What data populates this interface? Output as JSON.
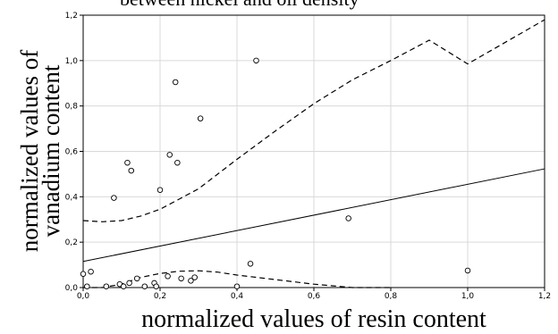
{
  "chart_data": {
    "type": "scatter",
    "title": "between nickel and oil density",
    "xlabel": "normalized values of resin content",
    "ylabel_line1": "normalized values of",
    "ylabel_line2": "vanadium content",
    "xlim": [
      0,
      1.2
    ],
    "ylim": [
      0,
      1.2
    ],
    "x_ticks": [
      "0,0",
      "0,2",
      "0,4",
      "0,6",
      "0,8",
      "1,0",
      "1,2"
    ],
    "y_ticks": [
      "0,0",
      "0,2",
      "0,4",
      "0,6",
      "0,8",
      "1,0",
      "1,2"
    ],
    "grid": true,
    "points": [
      {
        "x": 0.0,
        "y": 0.06
      },
      {
        "x": 0.02,
        "y": 0.07
      },
      {
        "x": 0.01,
        "y": 0.005
      },
      {
        "x": 0.06,
        "y": 0.005
      },
      {
        "x": 0.08,
        "y": 0.395
      },
      {
        "x": 0.095,
        "y": 0.015
      },
      {
        "x": 0.105,
        "y": 0.005
      },
      {
        "x": 0.12,
        "y": 0.02
      },
      {
        "x": 0.115,
        "y": 0.55
      },
      {
        "x": 0.125,
        "y": 0.515
      },
      {
        "x": 0.14,
        "y": 0.04
      },
      {
        "x": 0.16,
        "y": 0.005
      },
      {
        "x": 0.185,
        "y": 0.02
      },
      {
        "x": 0.19,
        "y": 0.005
      },
      {
        "x": 0.2,
        "y": 0.43
      },
      {
        "x": 0.22,
        "y": 0.05
      },
      {
        "x": 0.225,
        "y": 0.585
      },
      {
        "x": 0.24,
        "y": 0.905
      },
      {
        "x": 0.245,
        "y": 0.55
      },
      {
        "x": 0.255,
        "y": 0.04
      },
      {
        "x": 0.28,
        "y": 0.03
      },
      {
        "x": 0.29,
        "y": 0.045
      },
      {
        "x": 0.305,
        "y": 0.745
      },
      {
        "x": 0.4,
        "y": 0.005
      },
      {
        "x": 0.435,
        "y": 0.105
      },
      {
        "x": 0.45,
        "y": 1.0
      },
      {
        "x": 0.69,
        "y": 0.305
      },
      {
        "x": 1.0,
        "y": 0.075
      }
    ],
    "fit_line": {
      "intercept": 0.115,
      "slope": 0.34
    },
    "upper_band": [
      {
        "x": 0.0,
        "y": 0.295
      },
      {
        "x": 0.05,
        "y": 0.29
      },
      {
        "x": 0.1,
        "y": 0.295
      },
      {
        "x": 0.15,
        "y": 0.315
      },
      {
        "x": 0.2,
        "y": 0.345
      },
      {
        "x": 0.25,
        "y": 0.39
      },
      {
        "x": 0.3,
        "y": 0.435
      },
      {
        "x": 0.35,
        "y": 0.5
      },
      {
        "x": 0.4,
        "y": 0.565
      },
      {
        "x": 0.5,
        "y": 0.69
      },
      {
        "x": 0.6,
        "y": 0.81
      },
      {
        "x": 0.7,
        "y": 0.915
      },
      {
        "x": 0.8,
        "y": 1.0
      },
      {
        "x": 0.9,
        "y": 1.09
      },
      {
        "x": 1.0,
        "y": 0.985
      },
      {
        "x": 1.2,
        "y": 1.18
      }
    ],
    "lower_band": [
      {
        "x": 0.0,
        "y": -0.05
      },
      {
        "x": 0.05,
        "y": -0.02
      },
      {
        "x": 0.1,
        "y": 0.015
      },
      {
        "x": 0.15,
        "y": 0.045
      },
      {
        "x": 0.2,
        "y": 0.062
      },
      {
        "x": 0.25,
        "y": 0.072
      },
      {
        "x": 0.3,
        "y": 0.074
      },
      {
        "x": 0.35,
        "y": 0.068
      },
      {
        "x": 0.4,
        "y": 0.055
      },
      {
        "x": 0.5,
        "y": 0.035
      },
      {
        "x": 0.6,
        "y": 0.015
      },
      {
        "x": 0.7,
        "y": 0.0
      },
      {
        "x": 0.8,
        "y": -0.02
      }
    ]
  }
}
